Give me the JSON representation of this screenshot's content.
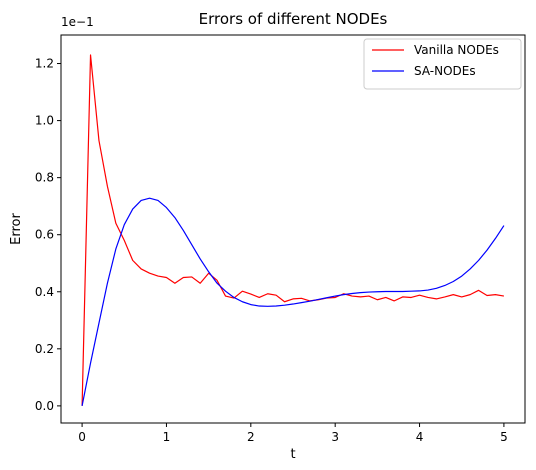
{
  "chart_data": {
    "type": "line",
    "title": "Errors of different NODEs",
    "xlabel": "t",
    "ylabel": "Error",
    "y_scale_label": "1e−1",
    "xlim": [
      -0.25,
      5.25
    ],
    "ylim": [
      -0.06,
      1.3
    ],
    "xticks": [
      0,
      1,
      2,
      3,
      4,
      5
    ],
    "xtick_labels": [
      "0",
      "1",
      "2",
      "3",
      "4",
      "5"
    ],
    "yticks": [
      0.0,
      0.2,
      0.4,
      0.6,
      0.8,
      1.0,
      1.2
    ],
    "ytick_labels": [
      "0.0",
      "0.2",
      "0.4",
      "0.6",
      "0.8",
      "1.0",
      "1.2"
    ],
    "grid": false,
    "legend_position": "top-right",
    "series": [
      {
        "name": "Vanilla NODEs",
        "color": "#ff0000",
        "x": [
          0,
          0.1,
          0.2,
          0.3,
          0.4,
          0.5,
          0.6,
          0.7,
          0.8,
          0.9,
          1.0,
          1.1,
          1.2,
          1.3,
          1.4,
          1.5,
          1.6,
          1.7,
          1.8,
          1.9,
          2.0,
          2.1,
          2.2,
          2.3,
          2.4,
          2.5,
          2.6,
          2.7,
          2.8,
          2.9,
          3.0,
          3.1,
          3.2,
          3.3,
          3.4,
          3.5,
          3.6,
          3.7,
          3.8,
          3.9,
          4.0,
          4.1,
          4.2,
          4.3,
          4.4,
          4.5,
          4.6,
          4.7,
          4.8,
          4.9,
          5.0
        ],
        "y": [
          0.0,
          1.23,
          0.93,
          0.77,
          0.64,
          0.58,
          0.51,
          0.48,
          0.465,
          0.455,
          0.45,
          0.43,
          0.45,
          0.452,
          0.43,
          0.465,
          0.44,
          0.385,
          0.378,
          0.402,
          0.392,
          0.38,
          0.393,
          0.388,
          0.365,
          0.375,
          0.377,
          0.368,
          0.372,
          0.378,
          0.38,
          0.393,
          0.385,
          0.382,
          0.385,
          0.372,
          0.38,
          0.368,
          0.382,
          0.38,
          0.388,
          0.38,
          0.375,
          0.382,
          0.39,
          0.382,
          0.39,
          0.405,
          0.387,
          0.39,
          0.385
        ]
      },
      {
        "name": "SA-NODEs",
        "color": "#0000ff",
        "x": [
          0,
          0.1,
          0.2,
          0.3,
          0.4,
          0.5,
          0.6,
          0.7,
          0.8,
          0.9,
          1.0,
          1.1,
          1.2,
          1.3,
          1.4,
          1.5,
          1.6,
          1.7,
          1.8,
          1.9,
          2.0,
          2.1,
          2.2,
          2.3,
          2.4,
          2.5,
          2.6,
          2.7,
          2.8,
          2.9,
          3.0,
          3.1,
          3.2,
          3.3,
          3.4,
          3.5,
          3.6,
          3.7,
          3.8,
          3.9,
          4.0,
          4.1,
          4.2,
          4.3,
          4.4,
          4.5,
          4.6,
          4.7,
          4.8,
          4.9,
          5.0
        ],
        "y": [
          0.0,
          0.15,
          0.29,
          0.43,
          0.55,
          0.635,
          0.69,
          0.72,
          0.728,
          0.72,
          0.695,
          0.66,
          0.615,
          0.565,
          0.515,
          0.47,
          0.43,
          0.402,
          0.38,
          0.365,
          0.355,
          0.35,
          0.349,
          0.35,
          0.353,
          0.357,
          0.362,
          0.367,
          0.373,
          0.379,
          0.385,
          0.39,
          0.394,
          0.397,
          0.399,
          0.4,
          0.401,
          0.401,
          0.401,
          0.402,
          0.403,
          0.406,
          0.412,
          0.422,
          0.436,
          0.455,
          0.48,
          0.51,
          0.546,
          0.587,
          0.632
        ]
      }
    ]
  }
}
